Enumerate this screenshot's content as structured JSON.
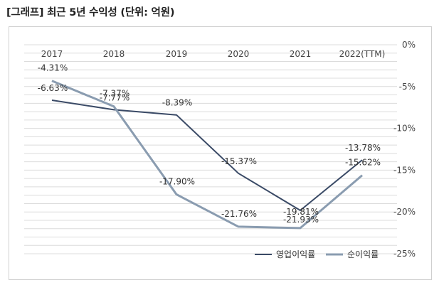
{
  "header": {
    "title": "[그래프] 최근 5년 수익성 (단위: 억원)"
  },
  "colors": {
    "operating": "#3a4a66",
    "net": "#8a9cb0",
    "grid": "#dcdcdc"
  },
  "chart_data": {
    "type": "line",
    "title": "[그래프] 최근 5년 수익성 (단위: 억원)",
    "categories": [
      "2017",
      "2018",
      "2019",
      "2020",
      "2021",
      "2022(TTM)"
    ],
    "ylim": [
      -25,
      0
    ],
    "y_ticks": [
      0,
      -5,
      -10,
      -15,
      -20,
      -25
    ],
    "y_tick_labels": [
      "0%",
      "-5%",
      "-10%",
      "-15%",
      "-20%",
      "-25%"
    ],
    "y_axis_position": "right",
    "x_axis_position": "top",
    "grid": true,
    "legend": "bottom-right",
    "series": [
      {
        "name": "영업이익률",
        "values": [
          -6.63,
          -7.77,
          -8.39,
          -15.37,
          -19.81,
          -13.78
        ],
        "labels": [
          "-6.63%",
          "-7.77%",
          "-8.39%",
          "-15.37%",
          "-19.81%",
          "-13.78%"
        ]
      },
      {
        "name": "순이익률",
        "values": [
          -4.31,
          -7.37,
          -17.9,
          -21.76,
          -21.93,
          -15.62
        ],
        "labels": [
          "-4.31%",
          "-7.37%",
          "-17.90%",
          "-21.76%",
          "-21.93%",
          "-15.62%"
        ]
      }
    ]
  }
}
